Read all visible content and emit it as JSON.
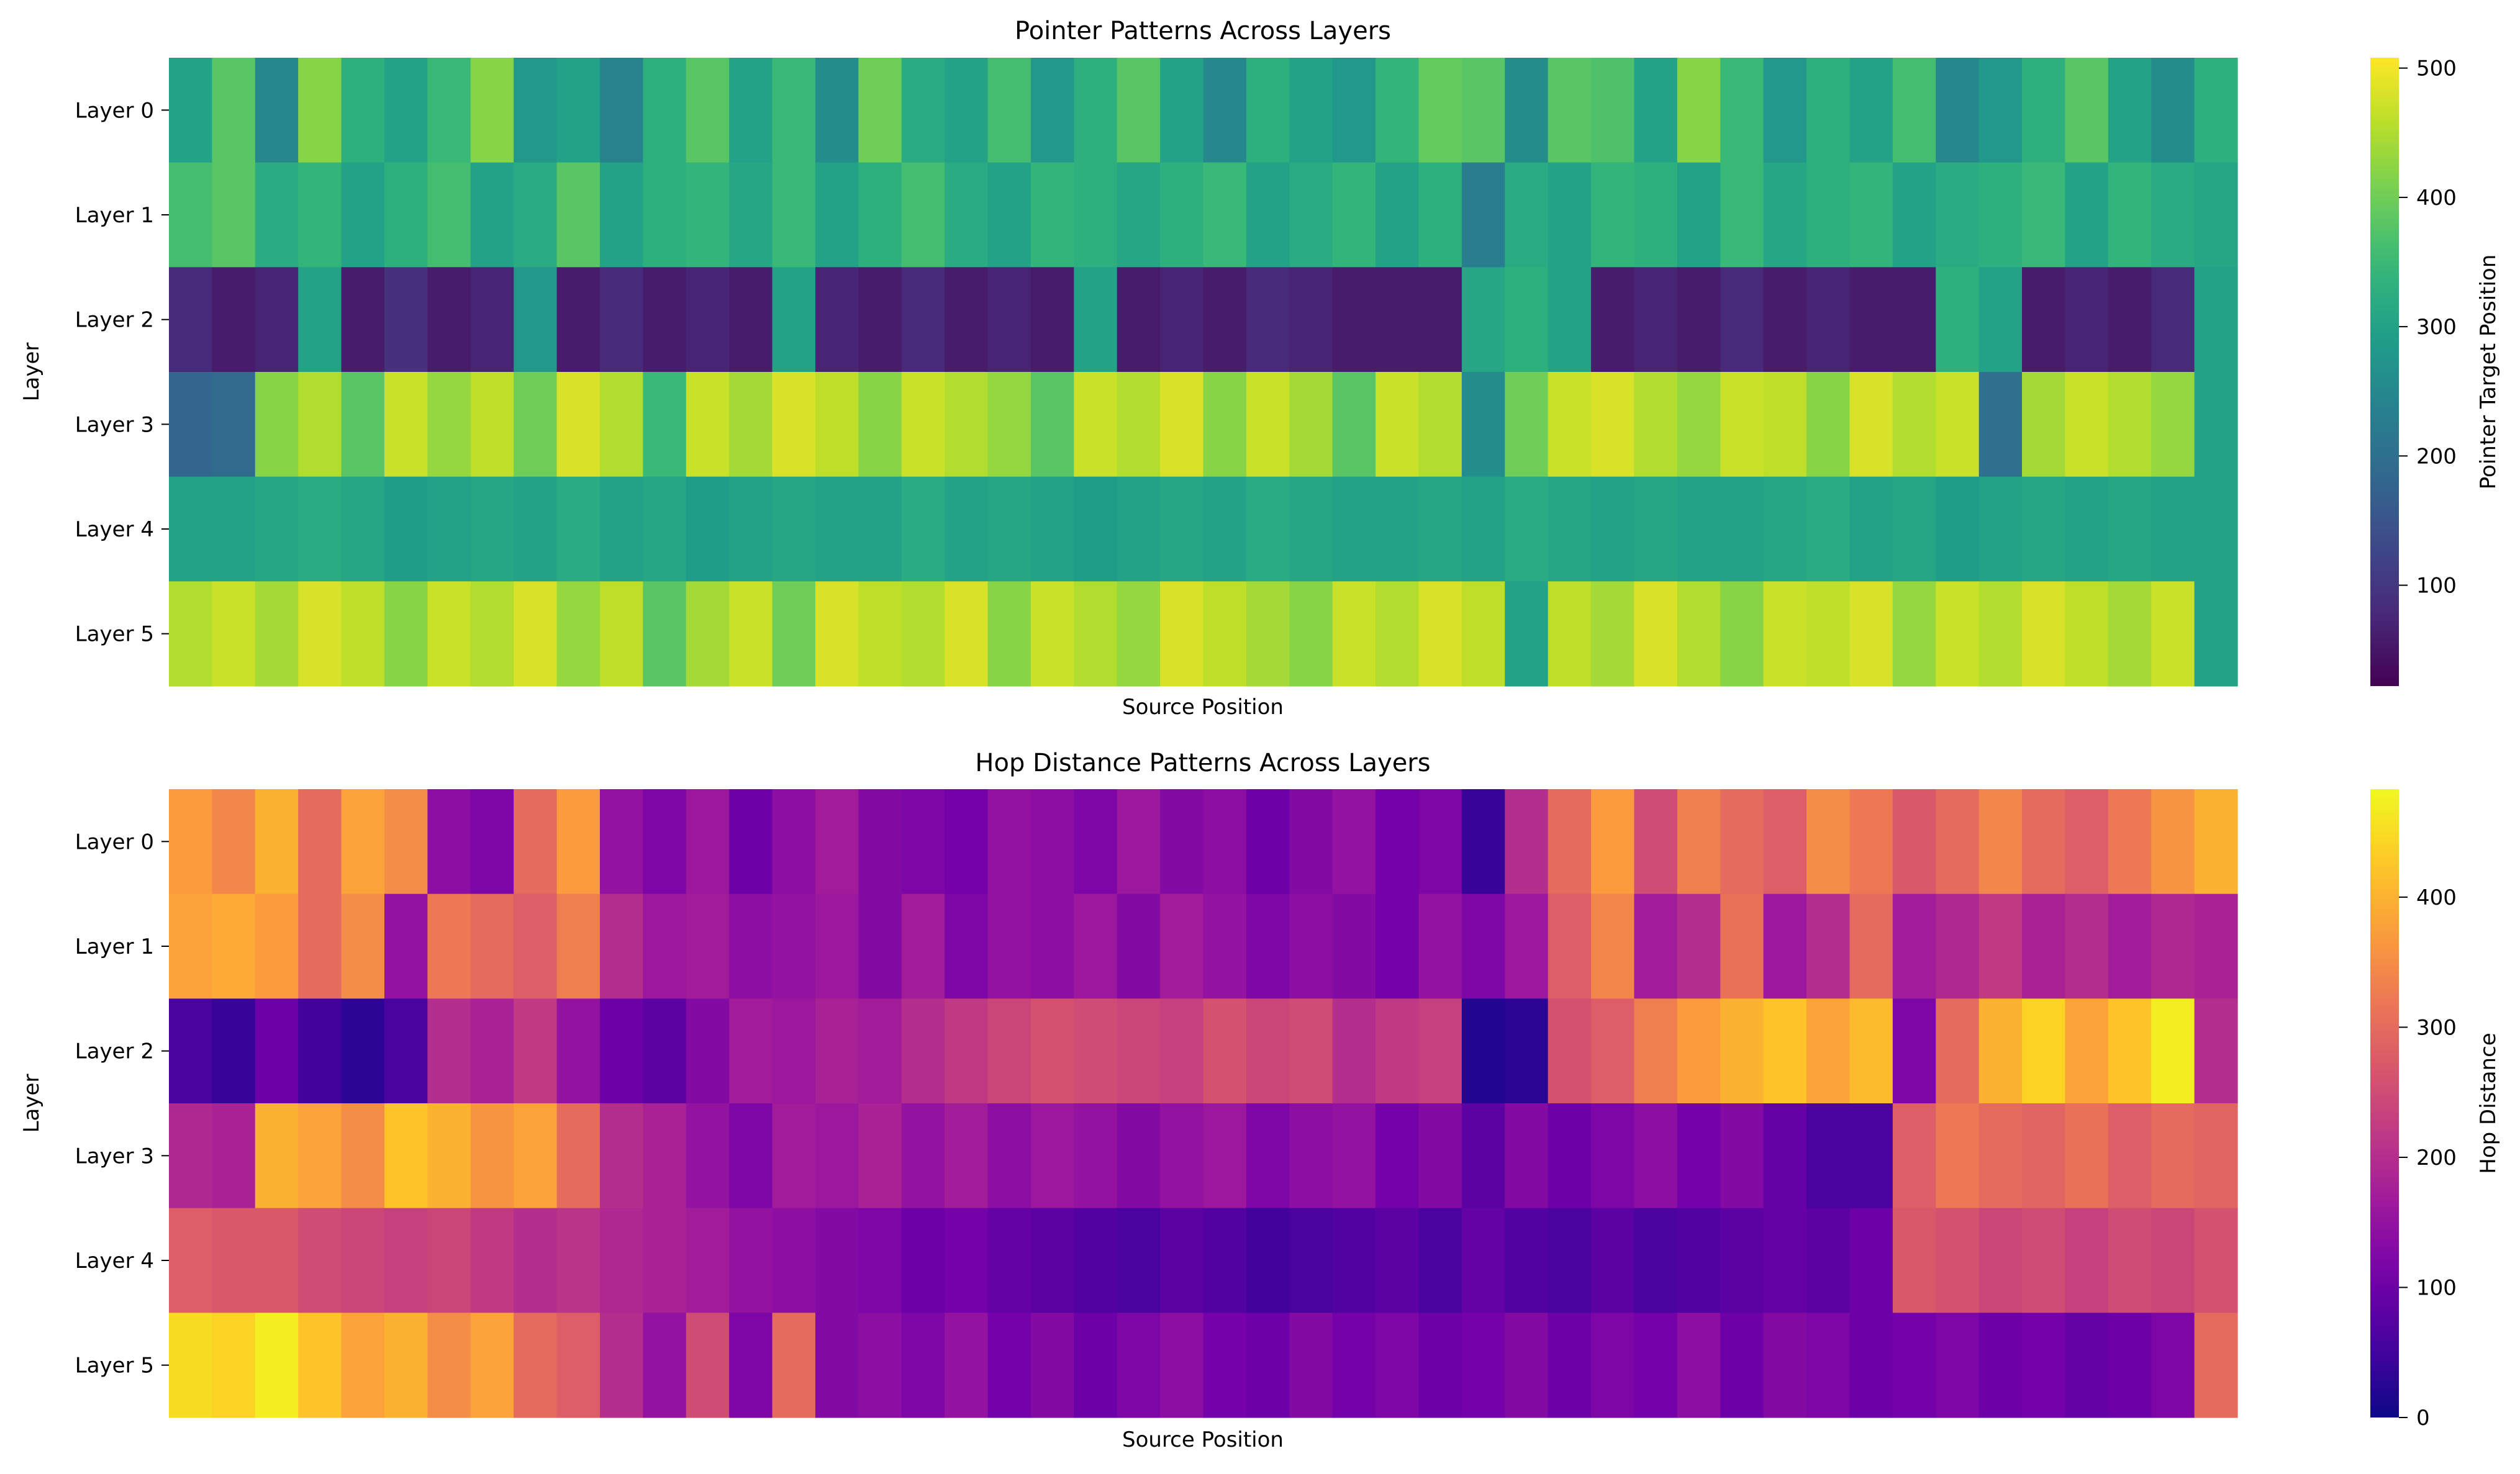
{
  "chart_data": [
    {
      "type": "heatmap",
      "title": "Pointer Patterns Across Layers",
      "xlabel": "Source Position",
      "ylabel": "Layer",
      "y_tick_labels": [
        "Layer 0",
        "Layer 1",
        "Layer 2",
        "Layer 3",
        "Layer 4",
        "Layer 5"
      ],
      "colormap": "viridis",
      "colorbar": {
        "label": "Pointer Target Position",
        "range": [
          22,
          508
        ],
        "ticks": [
          100,
          200,
          300,
          400,
          500
        ]
      },
      "values": [
        [
          300,
          380,
          250,
          420,
          330,
          300,
          350,
          420,
          280,
          300,
          240,
          330,
          380,
          300,
          350,
          260,
          400,
          320,
          300,
          360,
          280,
          330,
          380,
          300,
          250,
          330,
          300,
          280,
          340,
          390,
          380,
          260,
          380,
          370,
          300,
          420,
          350,
          280,
          330,
          300,
          360,
          250,
          280,
          330,
          380,
          300,
          260,
          330
        ],
        [
          360,
          380,
          320,
          340,
          300,
          330,
          360,
          300,
          320,
          380,
          300,
          330,
          340,
          310,
          350,
          300,
          330,
          360,
          320,
          300,
          340,
          330,
          310,
          330,
          350,
          300,
          320,
          340,
          300,
          330,
          230,
          320,
          300,
          340,
          330,
          300,
          350,
          310,
          330,
          340,
          300,
          320,
          330,
          350,
          300,
          340,
          320,
          310
        ],
        [
          80,
          60,
          70,
          300,
          60,
          90,
          60,
          70,
          280,
          60,
          80,
          60,
          70,
          60,
          300,
          70,
          60,
          80,
          60,
          70,
          60,
          300,
          60,
          70,
          60,
          80,
          70,
          60,
          60,
          60,
          310,
          330,
          300,
          60,
          70,
          60,
          80,
          60,
          70,
          60,
          60,
          330,
          300,
          60,
          70,
          60,
          80,
          300
        ],
        [
          180,
          190,
          420,
          450,
          380,
          470,
          430,
          460,
          400,
          480,
          450,
          350,
          470,
          440,
          480,
          460,
          420,
          470,
          450,
          430,
          380,
          470,
          450,
          480,
          420,
          470,
          440,
          380,
          470,
          450,
          260,
          400,
          470,
          480,
          450,
          430,
          470,
          460,
          420,
          480,
          450,
          470,
          200,
          440,
          470,
          450,
          430,
          300
        ],
        [
          300,
          300,
          310,
          320,
          310,
          290,
          300,
          310,
          300,
          320,
          300,
          310,
          290,
          300,
          310,
          300,
          300,
          320,
          300,
          310,
          300,
          290,
          300,
          310,
          300,
          320,
          310,
          300,
          300,
          310,
          300,
          320,
          310,
          300,
          310,
          300,
          300,
          310,
          320,
          300,
          310,
          290,
          300,
          310,
          300,
          310,
          300,
          300
        ],
        [
          450,
          470,
          440,
          480,
          460,
          420,
          470,
          450,
          480,
          430,
          460,
          380,
          440,
          470,
          400,
          480,
          460,
          450,
          480,
          420,
          470,
          450,
          430,
          480,
          460,
          440,
          420,
          470,
          450,
          480,
          460,
          300,
          460,
          440,
          480,
          450,
          420,
          470,
          460,
          480,
          430,
          470,
          450,
          480,
          460,
          440,
          470,
          300
        ]
      ]
    },
    {
      "type": "heatmap",
      "title": "Hop Distance Patterns Across Layers",
      "xlabel": "Source Position",
      "ylabel": "Layer",
      "y_tick_labels": [
        "Layer 0",
        "Layer 1",
        "Layer 2",
        "Layer 3",
        "Layer 4",
        "Layer 5"
      ],
      "colormap": "plasma",
      "colorbar": {
        "label": "Hop Distance",
        "range": [
          0,
          483
        ],
        "ticks": [
          0,
          100,
          200,
          300,
          400
        ]
      },
      "values": [
        [
          370,
          340,
          400,
          300,
          380,
          350,
          140,
          120,
          300,
          370,
          150,
          120,
          160,
          100,
          140,
          170,
          130,
          120,
          110,
          150,
          140,
          120,
          160,
          130,
          140,
          100,
          130,
          150,
          110,
          120,
          40,
          200,
          300,
          370,
          250,
          330,
          300,
          280,
          350,
          320,
          270,
          300,
          340,
          300,
          280,
          320,
          360,
          400
        ],
        [
          380,
          390,
          370,
          300,
          350,
          150,
          320,
          300,
          280,
          330,
          200,
          160,
          170,
          140,
          150,
          160,
          130,
          170,
          120,
          150,
          140,
          160,
          130,
          170,
          150,
          120,
          140,
          130,
          110,
          150,
          120,
          160,
          280,
          340,
          170,
          200,
          310,
          160,
          200,
          300,
          170,
          190,
          220,
          180,
          200,
          170,
          190,
          180
        ],
        [
          60,
          40,
          100,
          50,
          30,
          60,
          200,
          180,
          220,
          150,
          100,
          80,
          130,
          170,
          160,
          180,
          170,
          200,
          220,
          240,
          260,
          250,
          240,
          230,
          260,
          240,
          250,
          200,
          220,
          230,
          20,
          30,
          260,
          280,
          330,
          370,
          400,
          420,
          380,
          410,
          120,
          300,
          400,
          440,
          380,
          420,
          470,
          200
        ],
        [
          190,
          180,
          400,
          380,
          350,
          420,
          400,
          360,
          380,
          300,
          200,
          180,
          150,
          120,
          170,
          160,
          180,
          150,
          170,
          140,
          160,
          150,
          130,
          150,
          160,
          120,
          140,
          150,
          110,
          130,
          80,
          130,
          100,
          120,
          140,
          110,
          130,
          90,
          60,
          60,
          280,
          320,
          300,
          290,
          310,
          280,
          300,
          290
        ],
        [
          280,
          270,
          270,
          250,
          240,
          230,
          240,
          220,
          200,
          210,
          190,
          180,
          170,
          150,
          140,
          130,
          120,
          100,
          110,
          90,
          80,
          70,
          60,
          80,
          70,
          50,
          60,
          70,
          80,
          60,
          90,
          70,
          60,
          80,
          60,
          70,
          80,
          90,
          80,
          100,
          270,
          260,
          240,
          250,
          230,
          250,
          240,
          260
        ],
        [
          450,
          440,
          470,
          420,
          380,
          400,
          350,
          380,
          300,
          280,
          200,
          150,
          250,
          120,
          300,
          130,
          140,
          120,
          150,
          110,
          130,
          100,
          120,
          140,
          110,
          100,
          130,
          110,
          120,
          100,
          110,
          130,
          100,
          120,
          110,
          140,
          100,
          130,
          120,
          100,
          110,
          120,
          100,
          110,
          90,
          100,
          120,
          300
        ]
      ]
    }
  ]
}
